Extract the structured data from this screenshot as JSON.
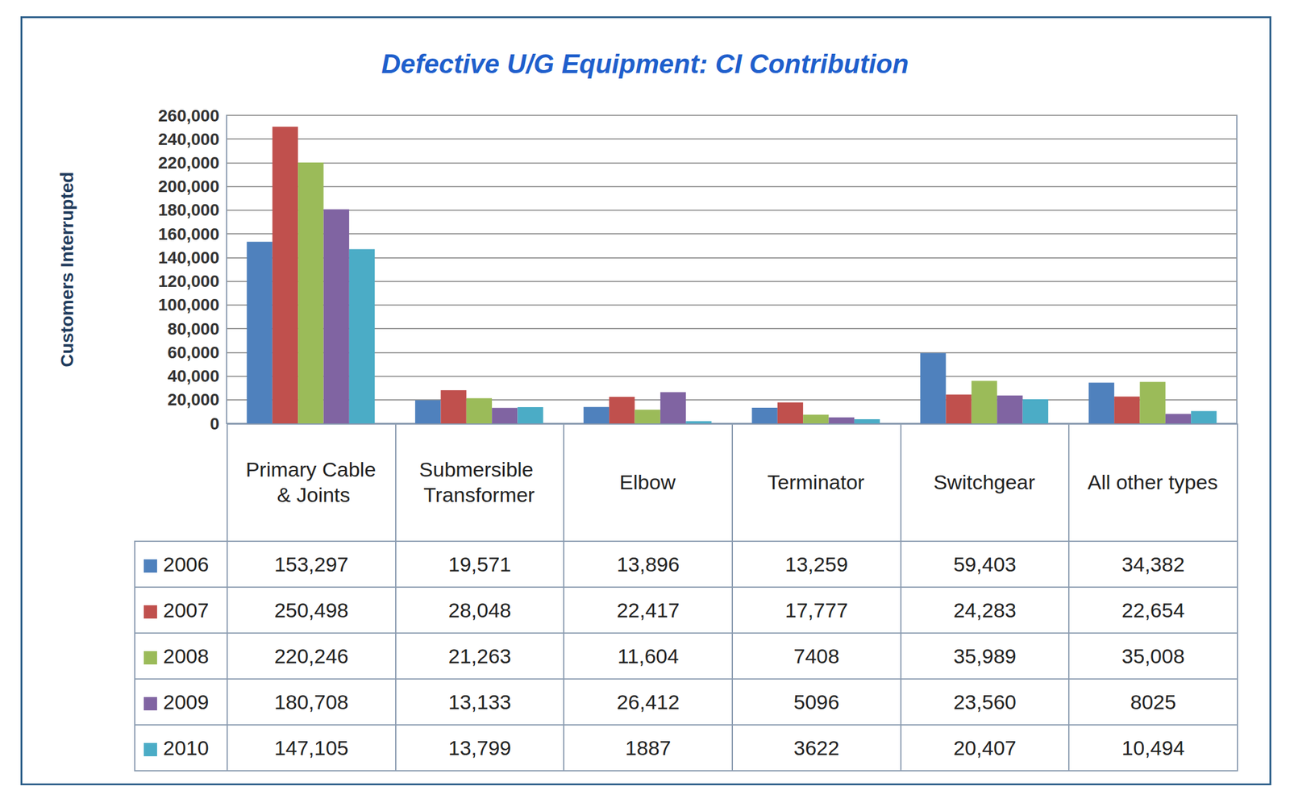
{
  "chart_data": {
    "type": "bar",
    "title": "Defective U/G Equipment: CI Contribution",
    "y_label": "Customers Interrupted",
    "categories": [
      "Primary Cable & Joints",
      "Submersible Transformer",
      "Elbow",
      "Terminator",
      "Switchgear",
      "All other types"
    ],
    "series": [
      {
        "name": "2006",
        "color": "#4f81bd",
        "values": [
          153297,
          19571,
          13896,
          13259,
          59403,
          34382
        ],
        "value_labels": [
          "153,297",
          "19,571",
          "13,896",
          "13,259",
          "59,403",
          "34,382"
        ]
      },
      {
        "name": "2007",
        "color": "#c0504d",
        "values": [
          250498,
          28048,
          22417,
          17777,
          24283,
          22654
        ],
        "value_labels": [
          "250,498",
          "28,048",
          "22,417",
          "17,777",
          "24,283",
          "22,654"
        ]
      },
      {
        "name": "2008",
        "color": "#9bbb59",
        "values": [
          220246,
          21263,
          11604,
          7408,
          35989,
          35008
        ],
        "value_labels": [
          "220,246",
          "21,263",
          "11,604",
          "7408",
          "35,989",
          "35,008"
        ]
      },
      {
        "name": "2009",
        "color": "#8064a2",
        "values": [
          180708,
          13133,
          26412,
          5096,
          23560,
          8025
        ],
        "value_labels": [
          "180,708",
          "13,133",
          "26,412",
          "5096",
          "23,560",
          "8025"
        ]
      },
      {
        "name": "2010",
        "color": "#4bacc6",
        "values": [
          147105,
          13799,
          1887,
          3622,
          20407,
          10494
        ],
        "value_labels": [
          "147,105",
          "13,799",
          "1887",
          "3622",
          "20,407",
          "10,494"
        ]
      }
    ],
    "ylim": [
      0,
      260000
    ],
    "yticks": [
      0,
      {
        "value": 20000,
        "label": "20,000"
      },
      {
        "value": 40000,
        "label": "40,000"
      },
      {
        "value": 60000,
        "label": "60,000"
      },
      {
        "value": 80000,
        "label": "80,000"
      },
      {
        "value": 100000,
        "label": "100,000"
      },
      {
        "value": 120000,
        "label": "120,000"
      },
      {
        "value": 140000,
        "label": "140,000"
      },
      {
        "value": 160000,
        "label": "160,000"
      },
      {
        "value": 180000,
        "label": "180,000"
      },
      {
        "value": 200000,
        "label": "200,000"
      },
      {
        "value": 220000,
        "label": "220,000"
      },
      {
        "value": 240000,
        "label": "240,000"
      },
      {
        "value": 260000,
        "label": "260,000"
      }
    ],
    "grid": true
  }
}
